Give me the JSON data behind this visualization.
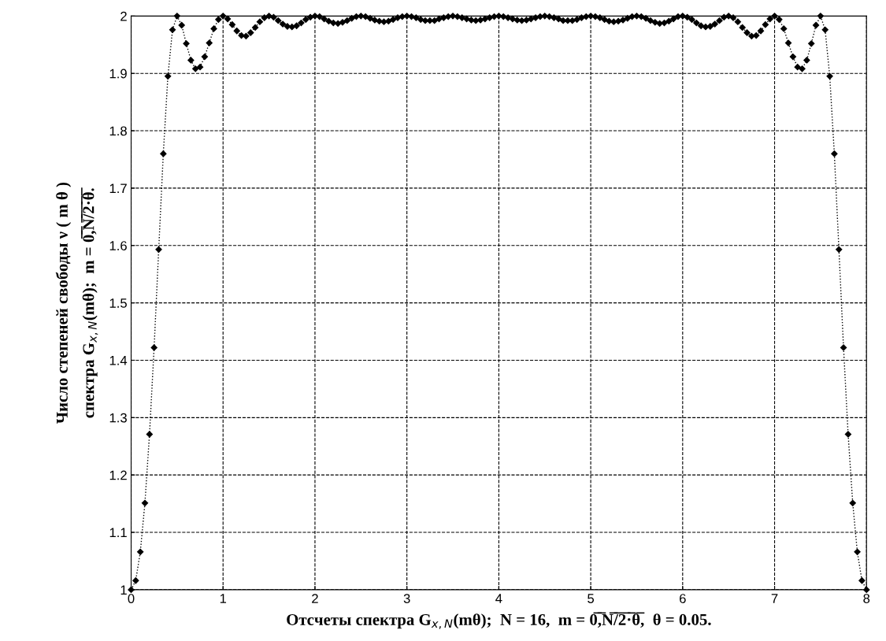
{
  "chart_data": {
    "type": "line",
    "xlabel": "Отсчеты спектра G$_{x,N}$(mθ);  N = 16,  m = 0̅,̅N̅/̅2̅·̅θ̅,  θ = 0.05.",
    "ylabel": "Число степеней свободы ν ( m θ )\nспектра G$_{x,N}$(mθ);  m = 0̅,̅N̅/̅2̅·̅θ̅.",
    "x": [
      0,
      0.05,
      0.1,
      0.15,
      0.2,
      0.25,
      0.3,
      0.35,
      0.4,
      0.45,
      0.5,
      0.55,
      0.6,
      0.65,
      0.7,
      0.75,
      0.8,
      0.85,
      0.9,
      0.95,
      1,
      1.05,
      1.1,
      1.15,
      1.2,
      1.25,
      1.3,
      1.35,
      1.4,
      1.45,
      1.5,
      1.55,
      1.6,
      1.65,
      1.7,
      1.75,
      1.8,
      1.85,
      1.9,
      1.95,
      2,
      2.05,
      2.1,
      2.15,
      2.2,
      2.25,
      2.3,
      2.35,
      2.4,
      2.45,
      2.5,
      2.55,
      2.6,
      2.65,
      2.7,
      2.75,
      2.8,
      2.85,
      2.9,
      2.95,
      3,
      3.05,
      3.1,
      3.15,
      3.2,
      3.25,
      3.3,
      3.35,
      3.4,
      3.45,
      3.5,
      3.55,
      3.6,
      3.65,
      3.7,
      3.75,
      3.8,
      3.85,
      3.9,
      3.95,
      4,
      4.05,
      4.1,
      4.15,
      4.2,
      4.25,
      4.3,
      4.35,
      4.4,
      4.45,
      4.5,
      4.55,
      4.6,
      4.65,
      4.7,
      4.75,
      4.8,
      4.85,
      4.9,
      4.95,
      5,
      5.05,
      5.1,
      5.15,
      5.2,
      5.25,
      5.3,
      5.35,
      5.4,
      5.45,
      5.5,
      5.55,
      5.6,
      5.65,
      5.7,
      5.75,
      5.8,
      5.85,
      5.9,
      5.95,
      6,
      6.05,
      6.1,
      6.15,
      6.2,
      6.25,
      6.3,
      6.35,
      6.4,
      6.45,
      6.5,
      6.55,
      6.6,
      6.65,
      6.7,
      6.75,
      6.8,
      6.85,
      6.9,
      6.95,
      7,
      7.05,
      7.1,
      7.15,
      7.2,
      7.25,
      7.3,
      7.35,
      7.4,
      7.45,
      7.5,
      7.55,
      7.6,
      7.65,
      7.7,
      7.75,
      7.8,
      7.85,
      7.9,
      7.95,
      8
    ],
    "series": [
      {
        "color": "#000000",
        "values": [
          1.0,
          1.016,
          1.066,
          1.151,
          1.271,
          1.422,
          1.593,
          1.76,
          1.895,
          1.976,
          2.0,
          1.984,
          1.952,
          1.923,
          1.908,
          1.911,
          1.929,
          1.953,
          1.978,
          1.994,
          2.0,
          1.995,
          1.985,
          1.974,
          1.966,
          1.965,
          1.971,
          1.98,
          1.99,
          1.997,
          2.0,
          1.998,
          1.992,
          1.986,
          1.982,
          1.981,
          1.983,
          1.988,
          1.994,
          1.998,
          2.0,
          1.999,
          1.995,
          1.991,
          1.988,
          1.987,
          1.989,
          1.992,
          1.996,
          1.999,
          2.0,
          1.999,
          1.996,
          1.993,
          1.991,
          1.99,
          1.991,
          1.994,
          1.997,
          1.999,
          2.0,
          1.999,
          1.997,
          1.994,
          1.992,
          1.992,
          1.992,
          1.995,
          1.997,
          1.999,
          2.0,
          1.999,
          1.997,
          1.995,
          1.993,
          1.992,
          1.993,
          1.995,
          1.997,
          1.999,
          2.0,
          1.999,
          1.997,
          1.995,
          1.993,
          1.992,
          1.993,
          1.995,
          1.997,
          1.999,
          2.0,
          1.999,
          1.997,
          1.995,
          1.992,
          1.992,
          1.992,
          1.994,
          1.997,
          1.999,
          2.0,
          1.999,
          1.997,
          1.994,
          1.991,
          1.99,
          1.991,
          1.993,
          1.996,
          1.999,
          2.0,
          1.999,
          1.996,
          1.992,
          1.989,
          1.987,
          1.988,
          1.991,
          1.995,
          1.999,
          2.0,
          1.998,
          1.994,
          1.988,
          1.983,
          1.981,
          1.982,
          1.986,
          1.992,
          1.998,
          2.0,
          1.997,
          1.99,
          1.98,
          1.971,
          1.965,
          1.966,
          1.974,
          1.985,
          1.995,
          2.0,
          1.994,
          1.978,
          1.953,
          1.929,
          1.911,
          1.908,
          1.923,
          1.952,
          1.984,
          2.0,
          1.976,
          1.895,
          1.76,
          1.593,
          1.422,
          1.271,
          1.151,
          1.066,
          1.016,
          1.0
        ]
      }
    ],
    "xlim": [
      0,
      8
    ],
    "xticks": [
      0,
      1,
      2,
      3,
      4,
      5,
      6,
      7,
      8
    ],
    "ylim": [
      1,
      2
    ],
    "yticks": [
      1,
      1.1,
      1.2,
      1.3,
      1.4,
      1.5,
      1.6,
      1.7,
      1.8,
      1.9,
      2
    ],
    "grid": true,
    "marker": "diamond",
    "line_style": "dotted"
  }
}
